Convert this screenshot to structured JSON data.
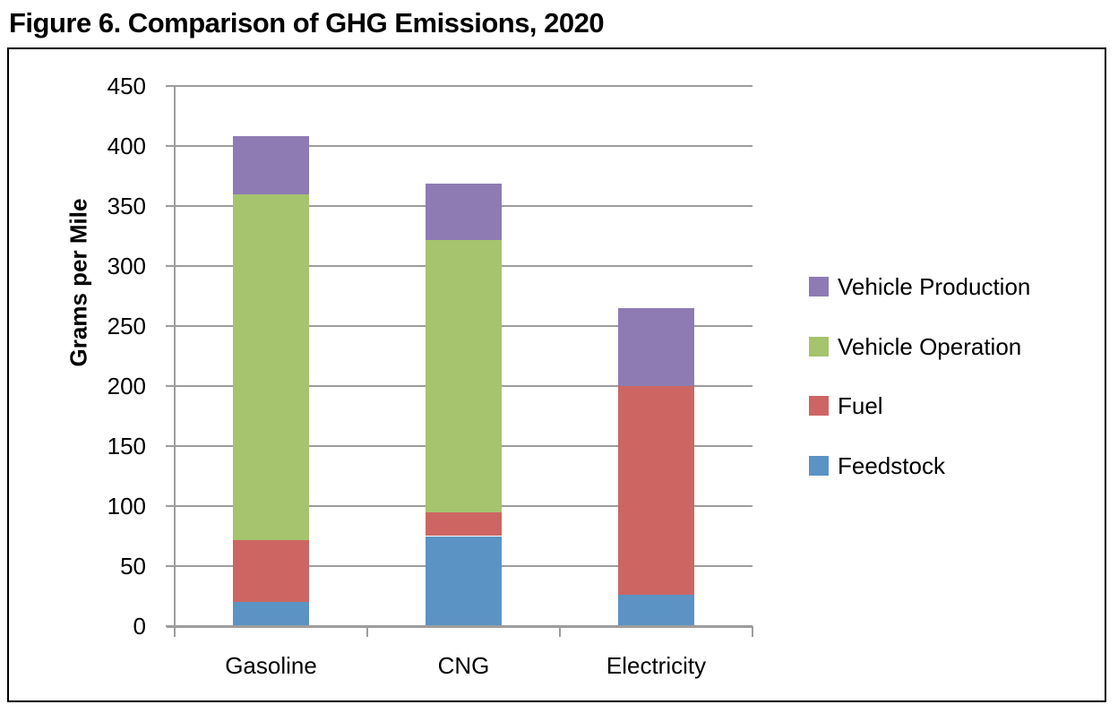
{
  "title": "Figure 6. Comparison of GHG Emissions, 2020",
  "chart_data": {
    "type": "bar",
    "stacked": true,
    "title": "Figure 6. Comparison of GHG Emissions, 2020",
    "ylabel": "Grams per Mile",
    "xlabel": "",
    "ylim": [
      0,
      450
    ],
    "ytick_step": 50,
    "yticks": [
      0,
      50,
      100,
      150,
      200,
      250,
      300,
      350,
      400,
      450
    ],
    "grid": true,
    "legend_position": "right",
    "categories": [
      "Gasoline",
      "CNG",
      "Electricity"
    ],
    "series": [
      {
        "name": "Feedstock",
        "color": "#5B93C5",
        "values": [
          20,
          75,
          26
        ]
      },
      {
        "name": "Fuel",
        "color": "#CD6663",
        "values": [
          52,
          20,
          174
        ]
      },
      {
        "name": "Vehicle Operation",
        "color": "#A5C46D",
        "values": [
          288,
          227,
          0
        ]
      },
      {
        "name": "Vehicle Production",
        "color": "#8E7BB3",
        "values": [
          48,
          47,
          65
        ]
      }
    ],
    "totals": [
      408,
      369,
      265
    ],
    "legend_order": [
      "Vehicle Production",
      "Vehicle Operation",
      "Fuel",
      "Feedstock"
    ]
  },
  "colors": {
    "gridline": "#9D9D9D",
    "axis": "#9D9D9D",
    "frame": "#000000",
    "text": "#000000",
    "background": "#FFFFFF"
  }
}
